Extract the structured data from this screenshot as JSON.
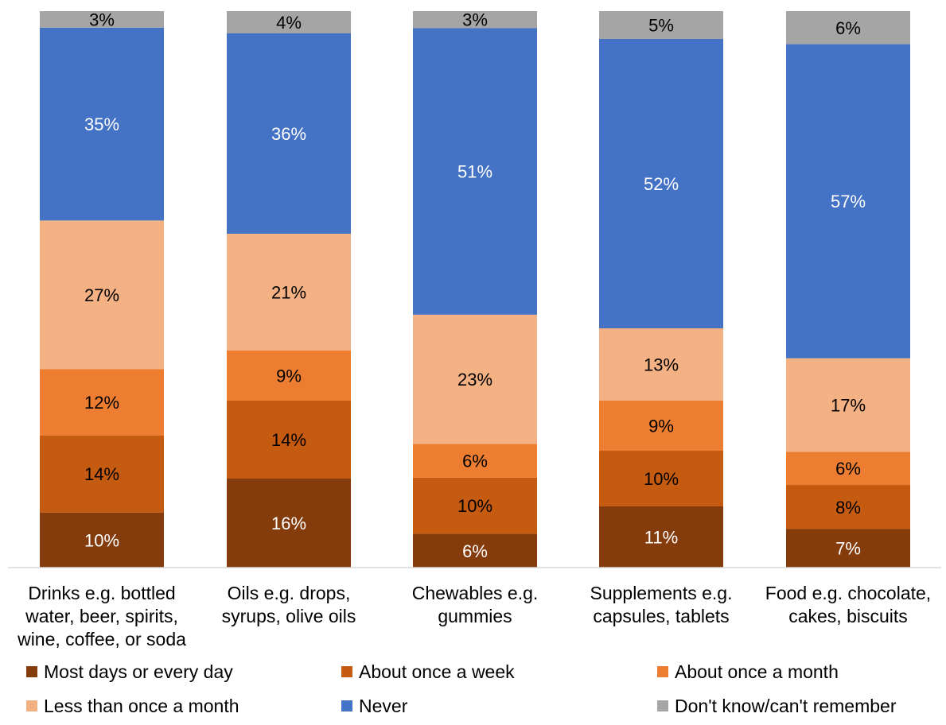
{
  "chart_data": {
    "type": "bar",
    "stacked": true,
    "title": "",
    "xlabel": "",
    "ylabel": "",
    "ylim": [
      0,
      100
    ],
    "grid": false,
    "legend_position": "bottom",
    "value_suffix": "%",
    "categories": [
      [
        "Drinks e.g. bottled",
        "water, beer, spirits,",
        "wine, coffee, or soda"
      ],
      [
        "Oils e.g. drops,",
        "syrups, olive oils"
      ],
      [
        "Chewables e.g.",
        "gummies"
      ],
      [
        "Supplements e.g.",
        "capsules, tablets"
      ],
      [
        "Food e.g. chocolate,",
        "cakes, biscuits"
      ]
    ],
    "series": [
      {
        "name": "Most days or every day",
        "color": "#843C0C",
        "label_color": "#ffffff",
        "values": [
          10,
          16,
          6,
          11,
          7
        ]
      },
      {
        "name": "About once a week",
        "color": "#C55A11",
        "label_color": "#000000",
        "values": [
          14,
          14,
          10,
          10,
          8
        ]
      },
      {
        "name": "About once a month",
        "color": "#ED7D31",
        "label_color": "#000000",
        "values": [
          12,
          9,
          6,
          9,
          6
        ]
      },
      {
        "name": "Less than once a month",
        "color": "#F4B183",
        "label_color": "#000000",
        "values": [
          27,
          21,
          23,
          13,
          17
        ]
      },
      {
        "name": "Never",
        "color": "#4472C4",
        "label_color": "#ffffff",
        "values": [
          35,
          36,
          51,
          52,
          57
        ]
      },
      {
        "name": "Don't know/can't remember",
        "color": "#A5A5A5",
        "label_color": "#000000",
        "values": [
          3,
          4,
          3,
          5,
          6
        ]
      }
    ]
  }
}
